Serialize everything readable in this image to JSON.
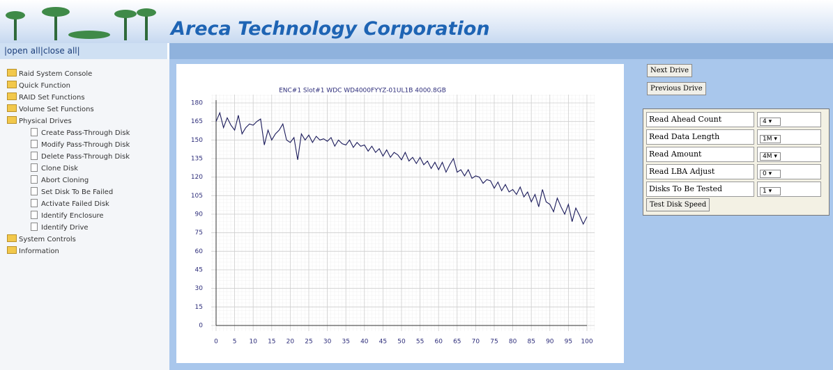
{
  "header": {
    "title": "Areca Technology Corporation"
  },
  "nav": {
    "toggle": "|open all|close all|",
    "root": "Raid System Console",
    "items": [
      {
        "label": "Quick Function"
      },
      {
        "label": "RAID Set Functions"
      },
      {
        "label": "Volume Set Functions"
      },
      {
        "label": "Physical Drives",
        "children": [
          "Create Pass-Through Disk",
          "Modify Pass-Through Disk",
          "Delete Pass-Through Disk",
          "Clone Disk",
          "Abort Cloning",
          "Set Disk To Be Failed",
          "Activate Failed Disk",
          "Identify Enclosure",
          "Identify Drive"
        ]
      },
      {
        "label": "System Controls"
      },
      {
        "label": "Information"
      }
    ]
  },
  "buttons": {
    "next": "Next Drive",
    "previous": "Previous Drive"
  },
  "form": {
    "rows": [
      {
        "label": "Read Ahead Count",
        "value": "4"
      },
      {
        "label": "Read Data Length",
        "value": "1M"
      },
      {
        "label": "Read Amount",
        "value": "4M"
      },
      {
        "label": "Read LBA Adjust",
        "value": "0"
      },
      {
        "label": "Disks To Be Tested",
        "value": "1"
      }
    ],
    "submit": "Test Disk Speed"
  },
  "chart_data": {
    "type": "line",
    "title": "ENC#1 Slot#1 WDC WD4000FYYZ-01UL1B 4000.8GB",
    "x": [
      0,
      1,
      2,
      3,
      4,
      5,
      6,
      7,
      8,
      9,
      10,
      11,
      12,
      13,
      14,
      15,
      16,
      17,
      18,
      19,
      20,
      21,
      22,
      23,
      24,
      25,
      26,
      27,
      28,
      29,
      30,
      31,
      32,
      33,
      34,
      35,
      36,
      37,
      38,
      39,
      40,
      41,
      42,
      43,
      44,
      45,
      46,
      47,
      48,
      49,
      50,
      51,
      52,
      53,
      54,
      55,
      56,
      57,
      58,
      59,
      60,
      61,
      62,
      63,
      64,
      65,
      66,
      67,
      68,
      69,
      70,
      71,
      72,
      73,
      74,
      75,
      76,
      77,
      78,
      79,
      80,
      81,
      82,
      83,
      84,
      85,
      86,
      87,
      88,
      89,
      90,
      91,
      92,
      93,
      94,
      95,
      96,
      97,
      98,
      99,
      100
    ],
    "series": [
      {
        "color": "#1a1a5a",
        "values": [
          165,
          172,
          160,
          168,
          162,
          158,
          170,
          155,
          160,
          163,
          162,
          165,
          167,
          146,
          158,
          150,
          155,
          158,
          163,
          150,
          148,
          152,
          134,
          155,
          150,
          154,
          148,
          153,
          150,
          151,
          149,
          152,
          145,
          150,
          147,
          146,
          150,
          144,
          148,
          145,
          146,
          141,
          145,
          140,
          143,
          137,
          142,
          136,
          140,
          138,
          134,
          140,
          133,
          136,
          131,
          136,
          130,
          133,
          127,
          132,
          126,
          132,
          124,
          130,
          135,
          124,
          126,
          121,
          126,
          119,
          121,
          120,
          115,
          118,
          117,
          111,
          116,
          109,
          114,
          108,
          110,
          106,
          112,
          104,
          108,
          100,
          106,
          96,
          110,
          100,
          98,
          92,
          103,
          96,
          90,
          98,
          84,
          95,
          89,
          82,
          88
        ]
      }
    ],
    "xlim": [
      0,
      100
    ],
    "ylim": [
      0,
      180
    ],
    "xticks": [
      0,
      5,
      10,
      15,
      20,
      25,
      30,
      35,
      40,
      45,
      50,
      55,
      60,
      65,
      70,
      75,
      80,
      85,
      90,
      95,
      100
    ],
    "yticks": [
      0,
      15,
      30,
      45,
      60,
      75,
      90,
      105,
      120,
      135,
      150,
      165,
      180
    ],
    "grid": true
  }
}
